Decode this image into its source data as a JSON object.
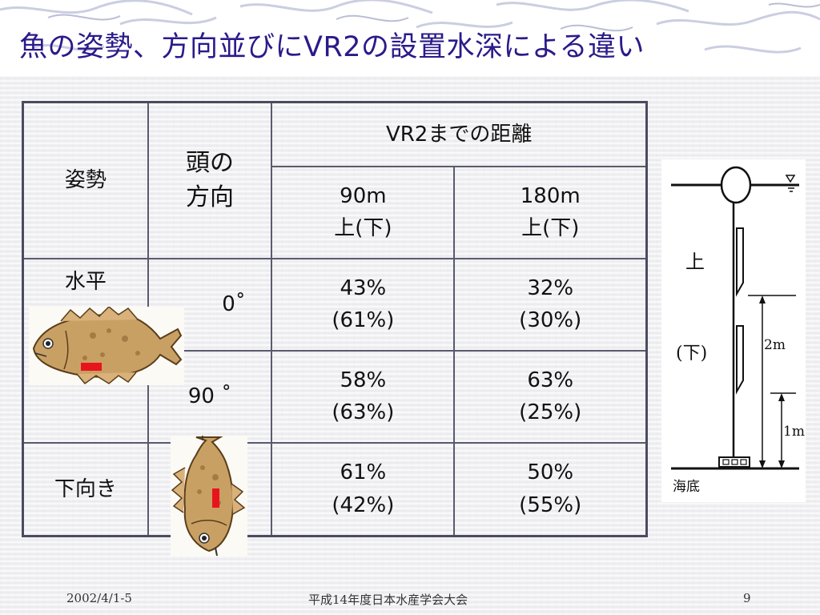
{
  "slide": {
    "title": "魚の姿勢、方向並びにVR2の設置水深による違い",
    "page_number": "9"
  },
  "table": {
    "col_posture": "姿勢",
    "col_head_direction_line1": "頭の",
    "col_head_direction_line2": "方向",
    "col_distance": "VR2までの距離",
    "sub_90": {
      "distance": "90m",
      "depth": "上(下)"
    },
    "sub_180": {
      "distance": "180m",
      "depth": "上(下)"
    },
    "rows": [
      {
        "posture": "水平",
        "direction": "0˚",
        "d90_top": "43%",
        "d90_bottom": "(61%)",
        "d180_top": "32%",
        "d180_bottom": "(30%)"
      },
      {
        "posture": "",
        "direction": "90 ˚",
        "d90_top": "58%",
        "d90_bottom": "(63%)",
        "d180_top": "63%",
        "d180_bottom": "(25%)"
      },
      {
        "posture": "下向き",
        "direction": "",
        "d90_top": "61%",
        "d90_bottom": "(42%)",
        "d180_top": "50%",
        "d180_bottom": "(55%)"
      }
    ]
  },
  "diagram": {
    "upper_label": "上",
    "lower_label": "(下)",
    "label_2m": "2m",
    "label_1m": "1m",
    "seabed_label": "海底"
  },
  "footer": {
    "date": "2002/4/1-5",
    "event": "平成14年度日本水産学会大会",
    "page": "9"
  },
  "colors": {
    "title": "#2a1a8a",
    "table_border": "#4b4b60",
    "marker_red": "#e8141c"
  }
}
